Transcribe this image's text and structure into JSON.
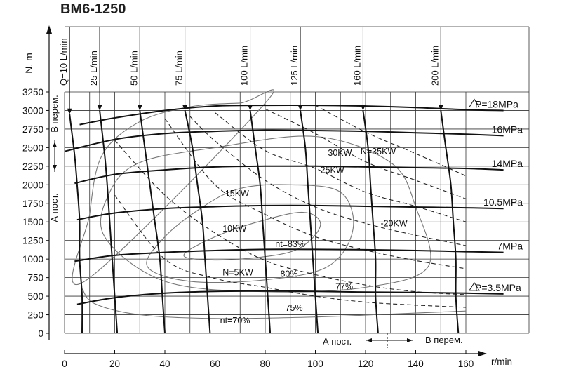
{
  "chart_data": {
    "type": "line",
    "title": "BM6-1250",
    "ylabel": "N. m",
    "xlabel": "r/min",
    "ylim": [
      0,
      3250
    ],
    "xlim": [
      0,
      160
    ],
    "grid": true,
    "x_ticks": [
      0,
      20,
      40,
      60,
      80,
      100,
      120,
      140,
      160
    ],
    "y_ticks": [
      0,
      250,
      500,
      750,
      1000,
      1250,
      1500,
      1750,
      2000,
      2250,
      2500,
      2750,
      3000,
      3250
    ],
    "pressure_series": [
      {
        "name": "P=18MPa",
        "marker": "triangle",
        "points": [
          [
            6,
            2810
          ],
          [
            20,
            2900
          ],
          [
            40,
            3000
          ],
          [
            60,
            3060
          ],
          [
            80,
            3070
          ],
          [
            100,
            3070
          ],
          [
            120,
            3060
          ],
          [
            140,
            3040
          ],
          [
            160,
            3010
          ],
          [
            175,
            3000
          ]
        ]
      },
      {
        "name": "16MPa",
        "points": [
          [
            0,
            2450
          ],
          [
            20,
            2610
          ],
          [
            40,
            2690
          ],
          [
            60,
            2720
          ],
          [
            80,
            2735
          ],
          [
            100,
            2730
          ],
          [
            120,
            2720
          ],
          [
            140,
            2700
          ],
          [
            160,
            2680
          ],
          [
            175,
            2660
          ]
        ]
      },
      {
        "name": "14MPa",
        "points": [
          [
            4,
            2020
          ],
          [
            20,
            2140
          ],
          [
            40,
            2200
          ],
          [
            60,
            2240
          ],
          [
            80,
            2250
          ],
          [
            100,
            2250
          ],
          [
            120,
            2240
          ],
          [
            140,
            2230
          ],
          [
            160,
            2220
          ],
          [
            175,
            2200
          ]
        ]
      },
      {
        "name": "10.5MPa",
        "points": [
          [
            5,
            1530
          ],
          [
            20,
            1620
          ],
          [
            40,
            1680
          ],
          [
            60,
            1705
          ],
          [
            80,
            1720
          ],
          [
            100,
            1720
          ],
          [
            120,
            1710
          ],
          [
            140,
            1700
          ],
          [
            160,
            1690
          ],
          [
            175,
            1680
          ]
        ]
      },
      {
        "name": "7MPa",
        "points": [
          [
            4,
            970
          ],
          [
            20,
            1050
          ],
          [
            40,
            1090
          ],
          [
            60,
            1115
          ],
          [
            80,
            1130
          ],
          [
            100,
            1130
          ],
          [
            120,
            1125
          ],
          [
            140,
            1115
          ],
          [
            160,
            1100
          ],
          [
            175,
            1090
          ]
        ]
      },
      {
        "name": "P=3.5MPa",
        "marker": "triangle",
        "points": [
          [
            5,
            390
          ],
          [
            20,
            480
          ],
          [
            40,
            540
          ],
          [
            60,
            565
          ],
          [
            80,
            570
          ],
          [
            100,
            565
          ],
          [
            120,
            555
          ],
          [
            140,
            550
          ],
          [
            160,
            540
          ],
          [
            175,
            530
          ]
        ]
      }
    ],
    "flow_series": [
      {
        "name": "Q=10 L/min",
        "points": [
          [
            2,
            2950
          ],
          [
            4,
            2400
          ],
          [
            5,
            2000
          ],
          [
            6,
            1500
          ],
          [
            6,
            1000
          ],
          [
            7,
            500
          ],
          [
            7,
            0
          ]
        ]
      },
      {
        "name": "25 L/min",
        "points": [
          [
            14,
            3000
          ],
          [
            16,
            2400
          ],
          [
            17,
            2000
          ],
          [
            18,
            1500
          ],
          [
            19,
            1000
          ],
          [
            20,
            500
          ],
          [
            21,
            0
          ]
        ]
      },
      {
        "name": "50 L/min",
        "points": [
          [
            30,
            3000
          ],
          [
            32,
            2500
          ],
          [
            34,
            2000
          ],
          [
            36,
            1500
          ],
          [
            38,
            1000
          ],
          [
            39,
            500
          ],
          [
            40,
            0
          ]
        ]
      },
      {
        "name": "75 L/min",
        "points": [
          [
            48,
            3000
          ],
          [
            51,
            2500
          ],
          [
            53,
            2000
          ],
          [
            55,
            1500
          ],
          [
            56,
            1000
          ],
          [
            57,
            500
          ],
          [
            58,
            0
          ]
        ]
      },
      {
        "name": "100 L/min",
        "points": [
          [
            74,
            3000
          ],
          [
            76,
            2500
          ],
          [
            78,
            2000
          ],
          [
            79,
            1500
          ],
          [
            80,
            1000
          ],
          [
            81,
            500
          ],
          [
            82,
            0
          ]
        ]
      },
      {
        "name": "125 L/min",
        "points": [
          [
            94,
            3000
          ],
          [
            96,
            2500
          ],
          [
            97,
            2000
          ],
          [
            98,
            1500
          ],
          [
            99,
            1000
          ],
          [
            100,
            500
          ],
          [
            101,
            0
          ]
        ]
      },
      {
        "name": "160 L/min",
        "points": [
          [
            119,
            3000
          ],
          [
            121,
            2500
          ],
          [
            122,
            2000
          ],
          [
            123,
            1500
          ],
          [
            124,
            1000
          ],
          [
            124,
            500
          ],
          [
            125,
            0
          ]
        ]
      },
      {
        "name": "200 L/min",
        "points": [
          [
            150,
            3000
          ],
          [
            152,
            2500
          ],
          [
            154,
            2000
          ],
          [
            155,
            1500
          ],
          [
            156,
            1000
          ],
          [
            156,
            500
          ],
          [
            157,
            0
          ]
        ]
      }
    ],
    "power_series": [
      {
        "name": "N=35KW",
        "points": [
          [
            100,
            3070
          ],
          [
            120,
            2710
          ],
          [
            140,
            2420
          ],
          [
            160,
            2120
          ]
        ]
      },
      {
        "name": "30KW",
        "points": [
          [
            80,
            3020
          ],
          [
            100,
            2690
          ],
          [
            120,
            2310
          ],
          [
            140,
            2060
          ],
          [
            160,
            1810
          ]
        ]
      },
      {
        "name": "25KW",
        "points": [
          [
            60,
            2970
          ],
          [
            80,
            2460
          ],
          [
            100,
            2220
          ],
          [
            120,
            1900
          ],
          [
            140,
            1710
          ],
          [
            160,
            1500
          ]
        ]
      },
      {
        "name": "20KW",
        "points": [
          [
            50,
            2920
          ],
          [
            60,
            2590
          ],
          [
            80,
            2060
          ],
          [
            100,
            1700
          ],
          [
            120,
            1480
          ],
          [
            140,
            1320
          ],
          [
            160,
            1180
          ]
        ]
      },
      {
        "name": "15KW",
        "points": [
          [
            40,
            2890
          ],
          [
            60,
            2000
          ],
          [
            80,
            1600
          ],
          [
            100,
            1300
          ],
          [
            120,
            1120
          ],
          [
            140,
            980
          ],
          [
            160,
            870
          ]
        ]
      },
      {
        "name": "10KW",
        "points": [
          [
            20,
            2600
          ],
          [
            40,
            1860
          ],
          [
            60,
            1350
          ],
          [
            80,
            980
          ],
          [
            100,
            790
          ],
          [
            120,
            650
          ],
          [
            140,
            560
          ],
          [
            160,
            520
          ]
        ]
      },
      {
        "name": "N=5KW",
        "points": [
          [
            20,
            1860
          ],
          [
            40,
            1000
          ],
          [
            60,
            740
          ],
          [
            80,
            620
          ],
          [
            100,
            500
          ],
          [
            120,
            420
          ],
          [
            140,
            380
          ],
          [
            160,
            350
          ]
        ]
      }
    ],
    "efficiency_series": [
      {
        "name": "nt=83%",
        "closed": true,
        "points": [
          [
            48,
            1080
          ],
          [
            60,
            1300
          ],
          [
            75,
            1480
          ],
          [
            95,
            1630
          ],
          [
            102,
            1450
          ],
          [
            92,
            1120
          ],
          [
            70,
            1000
          ],
          [
            52,
            1000
          ]
        ]
      },
      {
        "name": "80%",
        "closed": true,
        "points": [
          [
            33,
            900
          ],
          [
            40,
            1300
          ],
          [
            55,
            1700
          ],
          [
            70,
            1950
          ],
          [
            90,
            2000
          ],
          [
            110,
            1900
          ],
          [
            115,
            1400
          ],
          [
            105,
            900
          ],
          [
            80,
            720
          ],
          [
            50,
            700
          ]
        ]
      },
      {
        "name": "77%",
        "closed": true,
        "points": [
          [
            16,
            1300
          ],
          [
            18,
            1900
          ],
          [
            30,
            2300
          ],
          [
            60,
            2500
          ],
          [
            100,
            2650
          ],
          [
            130,
            2300
          ],
          [
            140,
            1700
          ],
          [
            145,
            900
          ],
          [
            120,
            620
          ],
          [
            80,
            560
          ],
          [
            40,
            700
          ]
        ]
      },
      {
        "name": "75%",
        "closed": true,
        "points": [
          [
            8,
            700
          ],
          [
            10,
            1600
          ],
          [
            15,
            2400
          ],
          [
            30,
            2850
          ],
          [
            50,
            3050
          ],
          [
            70,
            3100
          ],
          [
            80,
            3100
          ]
        ]
      },
      {
        "name": "nt=70%",
        "closed": false,
        "points": [
          [
            7,
            600
          ],
          [
            12,
            400
          ],
          [
            30,
            250
          ],
          [
            60,
            200
          ],
          [
            100,
            220
          ],
          [
            130,
            260
          ],
          [
            160,
            300
          ]
        ]
      }
    ],
    "annotations": {
      "a_post_y": "А пост.",
      "v_perem_y": "В перем.",
      "a_post_x": "А пост.",
      "v_perem_x": "В перем."
    }
  }
}
